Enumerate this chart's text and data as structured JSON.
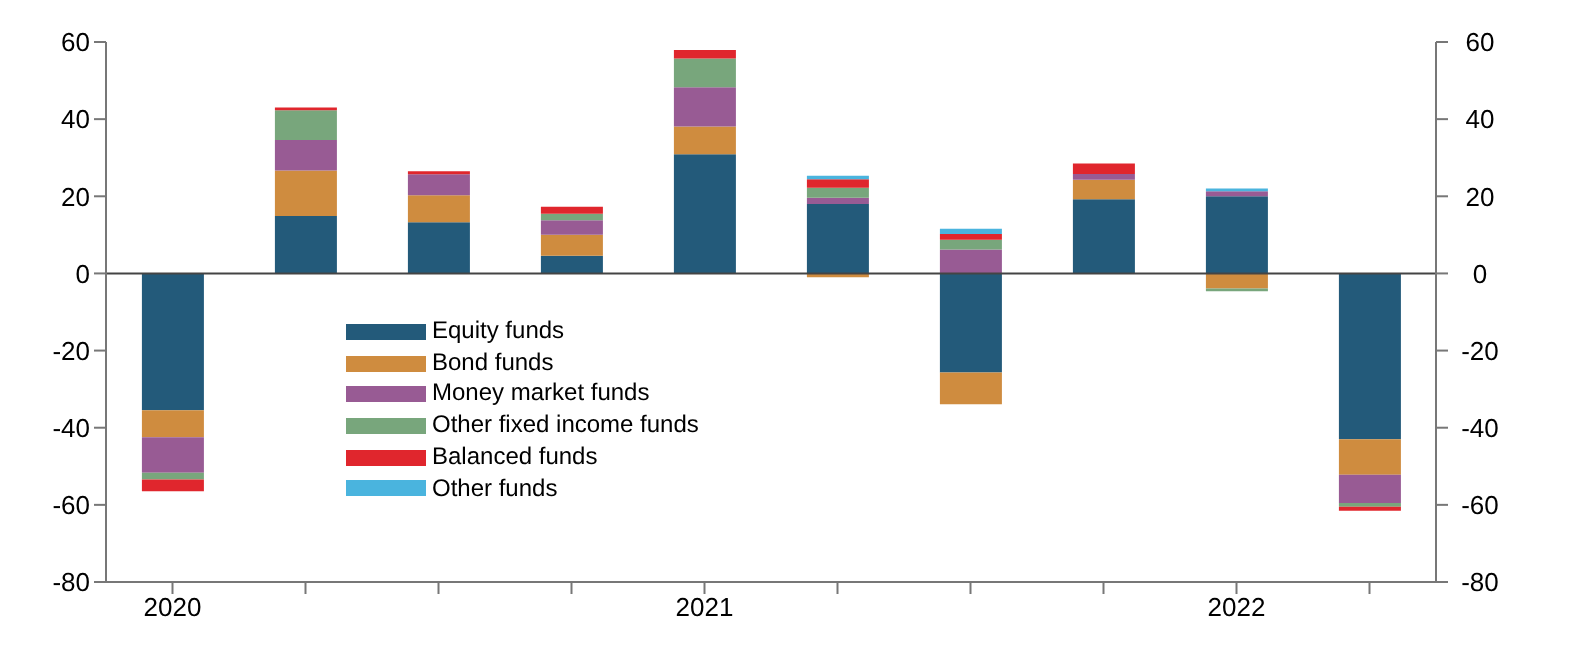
{
  "chart_data": {
    "type": "bar",
    "stacked": true,
    "categories": [
      "2020",
      null,
      null,
      null,
      "2021",
      null,
      null,
      null,
      "2022",
      null
    ],
    "series": [
      {
        "name": "Equity funds",
        "color": "#235a7a",
        "values": [
          -35.5,
          14.9,
          13.3,
          4.6,
          30.9,
          18,
          -25.7,
          19.2,
          20,
          -43
        ]
      },
      {
        "name": "Bond funds",
        "color": "#cf8c3f",
        "values": [
          -7,
          11.8,
          7,
          5.4,
          7.2,
          -1,
          -8.2,
          5.1,
          -3.9,
          -9.2
        ]
      },
      {
        "name": "Money market funds",
        "color": "#985b94",
        "values": [
          -9.2,
          7.9,
          5.4,
          3.8,
          10.2,
          1.6,
          6.2,
          1.5,
          1.3,
          -7.3
        ]
      },
      {
        "name": "Other fixed income funds",
        "color": "#78a67c",
        "values": [
          -1.7,
          7.7,
          null,
          1.7,
          7.4,
          2.6,
          2.5,
          null,
          -0.7,
          -1
        ]
      },
      {
        "name": "Balanced funds",
        "color": "#e0262d",
        "values": [
          -3.1,
          0.7,
          0.8,
          1.8,
          2.2,
          2.2,
          1.5,
          2.7,
          null,
          -1
        ]
      },
      {
        "name": "Other funds",
        "color": "#4ab4de",
        "values": [
          null,
          null,
          null,
          null,
          null,
          0.9,
          1.4,
          null,
          0.7,
          null
        ]
      }
    ],
    "ylim": [
      -80,
      60
    ],
    "yticks": [
      -80,
      -60,
      -40,
      -20,
      0,
      20,
      40,
      60
    ],
    "y2lim": [
      -80,
      60
    ],
    "y2ticks": [
      -80,
      -60,
      -40,
      -20,
      0,
      20,
      40,
      60
    ],
    "legend": "bottom left"
  }
}
